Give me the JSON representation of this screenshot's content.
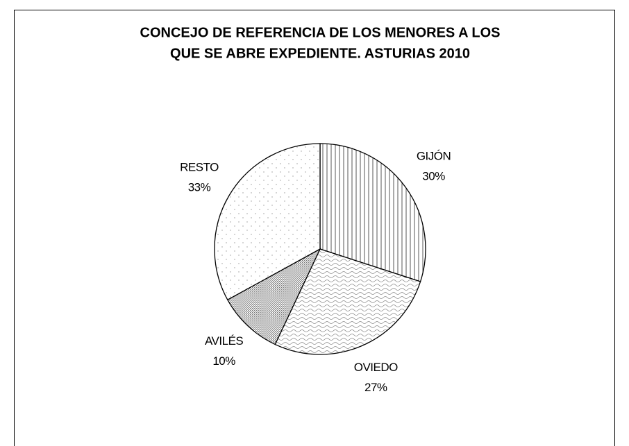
{
  "chart_data": {
    "type": "pie",
    "title": [
      "CONCEJO DE REFERENCIA DE LOS MENORES A LOS",
      "QUE SE ABRE EXPEDIENTE. ASTURIAS 2010"
    ],
    "categories": [
      "GIJÓN",
      "OVIEDO",
      "AVILÉS",
      "RESTO"
    ],
    "values": [
      30,
      27,
      10,
      33
    ],
    "value_labels": [
      "30%",
      "27%",
      "10%",
      "33%"
    ]
  }
}
